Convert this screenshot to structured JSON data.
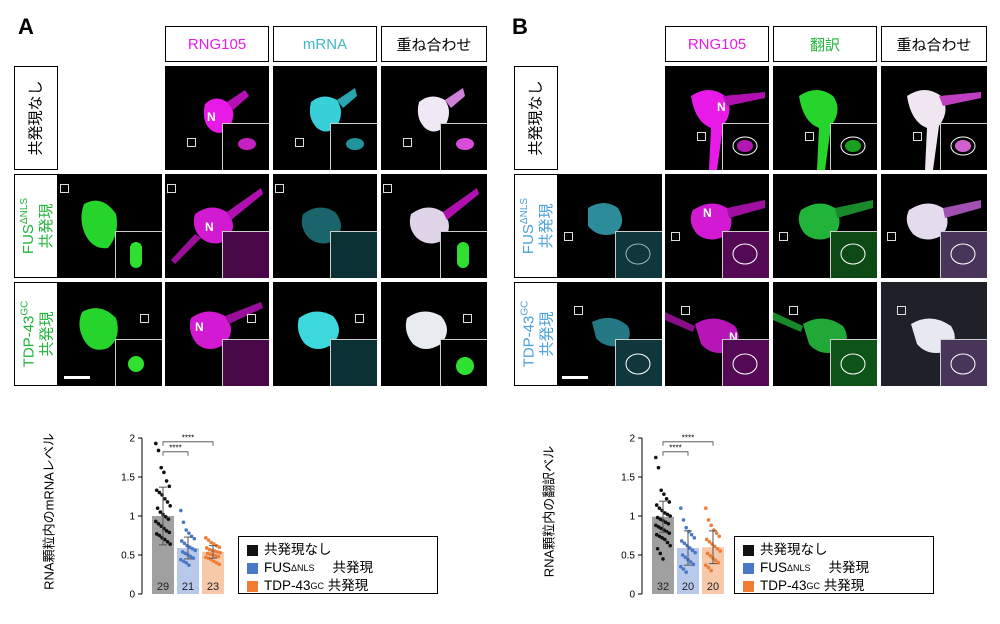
{
  "panel_a": {
    "letter": "A",
    "columns": [
      "RNG105",
      "mRNA",
      "重ね合わせ"
    ],
    "rows": [
      {
        "label": "共発現なし"
      },
      {
        "label_main": "FUS",
        "label_sup": "ΔNLS",
        "label_sub": "共発現"
      },
      {
        "label_main": "TDP-43",
        "label_sup": "GC",
        "label_sub": "共発現"
      }
    ],
    "n_marker": "N"
  },
  "panel_b": {
    "letter": "B",
    "columns": [
      "RNG105",
      "翻訳",
      "重ね合わせ"
    ],
    "rows": [
      {
        "label": "共発現なし"
      },
      {
        "label_main": "FUS",
        "label_sup": "ΔNLS",
        "label_sub": "共発現"
      },
      {
        "label_main": "TDP-43",
        "label_sup": "GC",
        "label_sub": "共発現"
      }
    ],
    "n_marker": "N"
  },
  "colors": {
    "magenta": "#e81ae8",
    "cyan": "#3fb6c9",
    "green": "#22b43a",
    "black_bar": "#111111",
    "blue": "#4a78c8",
    "orange": "#ef7d36",
    "bar_gray": "#a0a0a0",
    "bar_blue": "#b7c8ea",
    "bar_orange": "#f7c9a8"
  },
  "chart_data": [
    {
      "type": "bar",
      "ylabel": "RNA顆粒内のmRNAレベル",
      "ylim": [
        0,
        2
      ],
      "yticks": [
        "0",
        "0.5",
        "1",
        "1.5",
        "2"
      ],
      "categories": [
        "共発現なし",
        "FUSΔNLS 共発現",
        "TDP-43GC 共発現"
      ],
      "values": [
        1.0,
        0.59,
        0.54
      ],
      "errors": [
        0.37,
        0.14,
        0.08
      ],
      "n_labels": [
        "29",
        "21",
        "23"
      ],
      "significance": [
        "****",
        "****"
      ],
      "legend": [
        {
          "main": "共発現なし",
          "sup": "",
          "tail": ""
        },
        {
          "main": "FUS",
          "sup": "ΔNLS",
          "tail": "共発現"
        },
        {
          "main": "TDP-43",
          "sup": "GC",
          "tail": "共発現"
        }
      ],
      "points": [
        [
          1.93,
          1.84,
          1.62,
          1.56,
          1.45,
          1.38,
          1.33,
          1.3,
          1.27,
          1.22,
          1.18,
          1.13,
          1.1,
          1.05,
          1.02,
          0.99,
          0.96,
          0.93,
          0.9,
          0.87,
          0.84,
          0.81,
          0.79,
          0.77,
          0.75,
          0.72,
          0.7,
          0.67,
          0.64
        ],
        [
          1.07,
          0.92,
          0.82,
          0.78,
          0.74,
          0.71,
          0.68,
          0.65,
          0.62,
          0.6,
          0.58,
          0.56,
          0.54,
          0.52,
          0.5,
          0.48,
          0.46,
          0.44,
          0.42,
          0.4,
          0.37
        ],
        [
          0.72,
          0.69,
          0.66,
          0.64,
          0.62,
          0.6,
          0.59,
          0.57,
          0.56,
          0.55,
          0.54,
          0.53,
          0.52,
          0.51,
          0.5,
          0.49,
          0.48,
          0.47,
          0.46,
          0.44,
          0.42,
          0.4,
          0.38
        ]
      ]
    },
    {
      "type": "bar",
      "ylabel": "RNA顆粒内の翻訳ベル",
      "ylim": [
        0,
        2
      ],
      "yticks": [
        "0",
        "0.5",
        "1",
        "1.5",
        "2"
      ],
      "categories": [
        "共発現なし",
        "FUSΔNLS 共発現",
        "TDP-43GC 共発現"
      ],
      "values": [
        0.99,
        0.59,
        0.6
      ],
      "errors": [
        0.2,
        0.22,
        0.21
      ],
      "n_labels": [
        "32",
        "20",
        "20"
      ],
      "significance": [
        "****",
        "****"
      ],
      "legend": [
        {
          "main": "共発現なし",
          "sup": "",
          "tail": ""
        },
        {
          "main": "FUS",
          "sup": "ΔNLS",
          "tail": "共発現"
        },
        {
          "main": "TDP-43",
          "sup": "GC",
          "tail": "共発現"
        }
      ],
      "points": [
        [
          1.75,
          1.62,
          1.33,
          1.28,
          1.22,
          1.18,
          1.14,
          1.1,
          1.07,
          1.04,
          1.02,
          1.0,
          0.98,
          0.96,
          0.94,
          0.92,
          0.9,
          0.88,
          0.86,
          0.84,
          0.82,
          0.8,
          0.78,
          0.76,
          0.74,
          0.72,
          0.7,
          0.66,
          0.62,
          0.58,
          0.52,
          0.45
        ],
        [
          1.1,
          0.95,
          0.85,
          0.8,
          0.76,
          0.72,
          0.68,
          0.65,
          0.62,
          0.59,
          0.56,
          0.53,
          0.5,
          0.47,
          0.44,
          0.41,
          0.38,
          0.35,
          0.32,
          0.28
        ],
        [
          1.1,
          0.95,
          0.88,
          0.82,
          0.78,
          0.74,
          0.7,
          0.67,
          0.64,
          0.61,
          0.58,
          0.55,
          0.52,
          0.49,
          0.46,
          0.43,
          0.4,
          0.37,
          0.34,
          0.3
        ]
      ]
    }
  ]
}
